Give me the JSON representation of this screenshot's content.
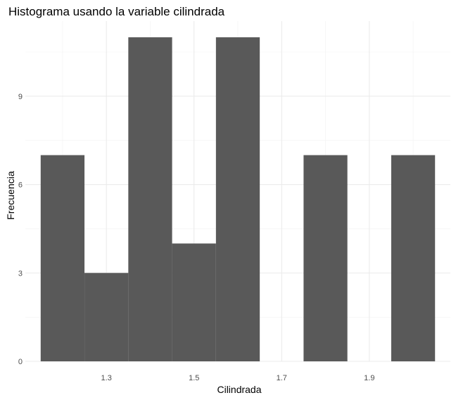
{
  "chart_data": {
    "type": "bar",
    "title": "Histograma usando la variable cilindrada",
    "xlabel": "Cilindrada",
    "ylabel": "Frecuencia",
    "bins": [
      {
        "x0": 1.15,
        "x1": 1.25,
        "count": 7
      },
      {
        "x0": 1.25,
        "x1": 1.35,
        "count": 3
      },
      {
        "x0": 1.35,
        "x1": 1.45,
        "count": 11
      },
      {
        "x0": 1.45,
        "x1": 1.55,
        "count": 4
      },
      {
        "x0": 1.55,
        "x1": 1.65,
        "count": 11
      },
      {
        "x0": 1.65,
        "x1": 1.75,
        "count": 0
      },
      {
        "x0": 1.75,
        "x1": 1.85,
        "count": 7
      },
      {
        "x0": 1.85,
        "x1": 1.95,
        "count": 0
      },
      {
        "x0": 1.95,
        "x1": 2.05,
        "count": 7
      }
    ],
    "xlim": [
      1.115,
      2.085
    ],
    "ylim": [
      0,
      11.55
    ],
    "xticks": [
      1.3,
      1.5,
      1.7,
      1.9
    ],
    "xtick_labels": [
      "1.3",
      "1.5",
      "1.7",
      "1.9"
    ],
    "xminor": [
      1.2,
      1.4,
      1.6,
      1.8,
      2.0
    ],
    "yticks": [
      0,
      3,
      6,
      9
    ],
    "ytick_labels": [
      "0",
      "3",
      "6",
      "9"
    ],
    "yminor": [
      1.5,
      4.5,
      7.5,
      10.5
    ],
    "grid": true,
    "bar_color": "#595959",
    "background": "#ffffff"
  }
}
